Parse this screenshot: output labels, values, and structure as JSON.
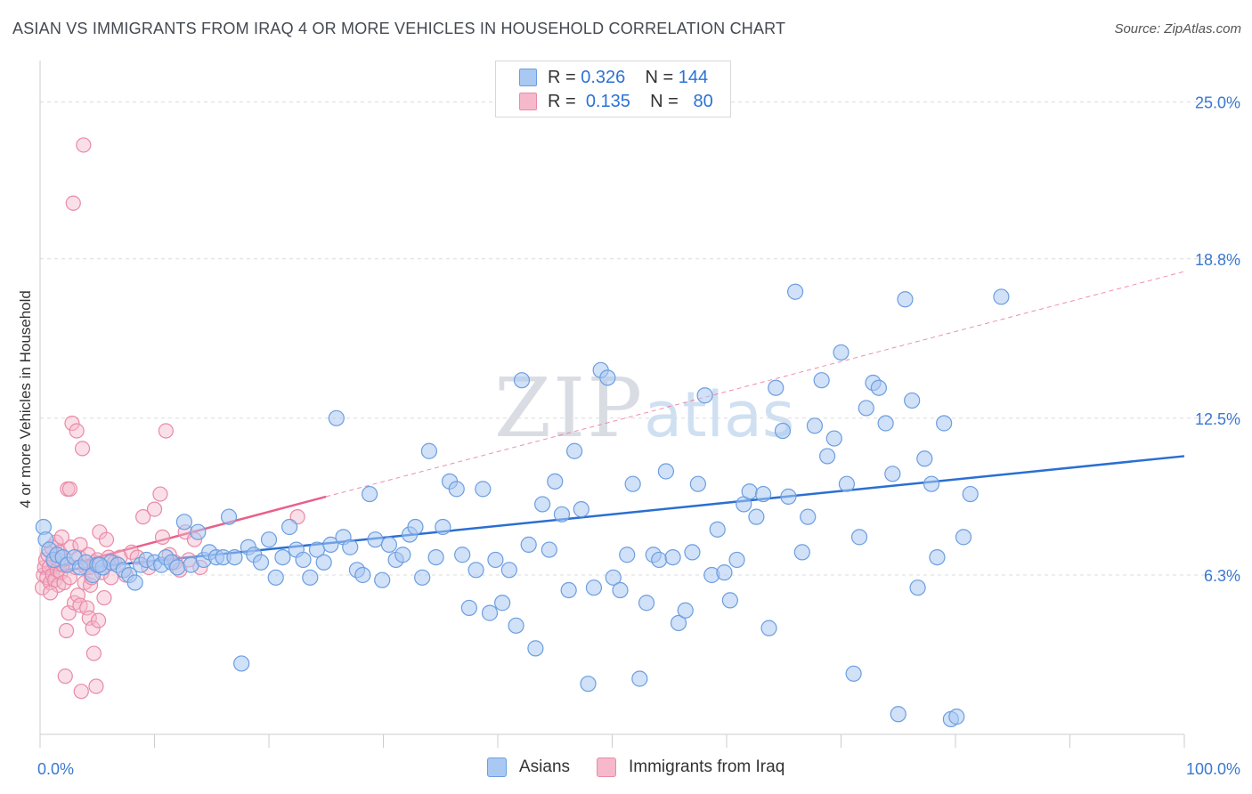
{
  "header": {
    "title": "ASIAN VS IMMIGRANTS FROM IRAQ 4 OR MORE VEHICLES IN HOUSEHOLD CORRELATION CHART",
    "source": "Source: ZipAtlas.com"
  },
  "watermark": {
    "zip": "ZIP",
    "atlas": "atlas"
  },
  "legend": {
    "rows": [
      {
        "r_label": "R =",
        "r_value": "0.326",
        "n_label": "N =",
        "n_value": "144"
      },
      {
        "r_label": "R =",
        "r_value": "0.135",
        "n_label": "N =",
        "n_value": "80"
      }
    ]
  },
  "bottom_legend": {
    "asians": "Asians",
    "iraq": "Immigrants from Iraq"
  },
  "colors": {
    "asian_fill": "#a9c8f2",
    "asian_stroke": "#6c9ee0",
    "asian_line": "#2a6fd2",
    "iraq_fill": "#f5b9cb",
    "iraq_stroke": "#e98aa7",
    "iraq_line": "#e8608a",
    "axis_text": "#3a78d0",
    "grid": "#dcdcdc"
  },
  "chart_data": {
    "type": "scatter",
    "title": "ASIAN VS IMMIGRANTS FROM IRAQ 4 OR MORE VEHICLES IN HOUSEHOLD CORRELATION CHART",
    "xlabel": "",
    "ylabel": "4 or more Vehicles in Household",
    "xlim": [
      0,
      100
    ],
    "ylim": [
      0,
      26.5
    ],
    "x_tick_labels": [
      "0.0%",
      "100.0%"
    ],
    "y_ticks": [
      6.3,
      12.5,
      18.8,
      25.0
    ],
    "y_tick_labels": [
      "6.3%",
      "12.5%",
      "18.8%",
      "25.0%"
    ],
    "grid": true,
    "legend_position": "top-center",
    "series": [
      {
        "name": "Asians",
        "r": 0.326,
        "n": 144,
        "trend": {
          "x": [
            0,
            100
          ],
          "y": [
            6.4,
            11.0
          ],
          "style": "solid"
        },
        "points": [
          [
            0.3,
            8.2
          ],
          [
            0.5,
            7.7
          ],
          [
            0.8,
            7.3
          ],
          [
            1.2,
            6.9
          ],
          [
            1.5,
            7.1
          ],
          [
            2.0,
            7.0
          ],
          [
            2.4,
            6.7
          ],
          [
            3.0,
            7.0
          ],
          [
            3.5,
            6.6
          ],
          [
            4.0,
            6.8
          ],
          [
            4.6,
            6.3
          ],
          [
            5.0,
            6.7
          ],
          [
            5.5,
            6.6
          ],
          [
            6.2,
            6.8
          ],
          [
            6.8,
            6.7
          ],
          [
            7.3,
            6.5
          ],
          [
            7.8,
            6.3
          ],
          [
            8.3,
            6.0
          ],
          [
            8.8,
            6.7
          ],
          [
            9.3,
            6.9
          ],
          [
            10.0,
            6.8
          ],
          [
            10.6,
            6.7
          ],
          [
            11.0,
            7.0
          ],
          [
            11.5,
            6.8
          ],
          [
            12.0,
            6.6
          ],
          [
            12.6,
            8.4
          ],
          [
            13.2,
            6.7
          ],
          [
            13.8,
            8.0
          ],
          [
            14.3,
            6.9
          ],
          [
            14.8,
            7.2
          ],
          [
            15.4,
            7.0
          ],
          [
            16.0,
            7.0
          ],
          [
            16.5,
            8.6
          ],
          [
            17.0,
            7.0
          ],
          [
            17.6,
            2.8
          ],
          [
            18.2,
            7.4
          ],
          [
            18.7,
            7.1
          ],
          [
            19.3,
            6.8
          ],
          [
            20.0,
            7.7
          ],
          [
            20.6,
            6.2
          ],
          [
            21.2,
            7.0
          ],
          [
            21.8,
            8.2
          ],
          [
            22.4,
            7.3
          ],
          [
            23.0,
            6.9
          ],
          [
            23.6,
            6.2
          ],
          [
            24.2,
            7.3
          ],
          [
            24.8,
            6.8
          ],
          [
            25.4,
            7.5
          ],
          [
            25.9,
            12.5
          ],
          [
            26.5,
            7.8
          ],
          [
            27.1,
            7.4
          ],
          [
            27.7,
            6.5
          ],
          [
            28.2,
            6.3
          ],
          [
            28.8,
            9.5
          ],
          [
            29.3,
            7.7
          ],
          [
            29.9,
            6.1
          ],
          [
            30.5,
            7.5
          ],
          [
            31.1,
            6.9
          ],
          [
            31.7,
            7.1
          ],
          [
            32.3,
            7.9
          ],
          [
            32.8,
            8.2
          ],
          [
            33.4,
            6.2
          ],
          [
            34.0,
            11.2
          ],
          [
            34.6,
            7.0
          ],
          [
            35.2,
            8.2
          ],
          [
            35.8,
            10.0
          ],
          [
            36.4,
            9.7
          ],
          [
            36.9,
            7.1
          ],
          [
            37.5,
            5.0
          ],
          [
            38.1,
            6.5
          ],
          [
            38.7,
            9.7
          ],
          [
            39.3,
            4.8
          ],
          [
            39.8,
            6.9
          ],
          [
            40.4,
            5.2
          ],
          [
            41.0,
            6.5
          ],
          [
            41.6,
            4.3
          ],
          [
            42.1,
            14.0
          ],
          [
            42.7,
            7.5
          ],
          [
            43.3,
            3.4
          ],
          [
            43.9,
            9.1
          ],
          [
            44.5,
            7.3
          ],
          [
            45.0,
            10.0
          ],
          [
            45.6,
            8.7
          ],
          [
            46.2,
            5.7
          ],
          [
            46.7,
            11.2
          ],
          [
            47.3,
            8.9
          ],
          [
            47.9,
            2.0
          ],
          [
            48.4,
            5.8
          ],
          [
            49.0,
            14.4
          ],
          [
            49.6,
            14.1
          ],
          [
            50.1,
            6.2
          ],
          [
            50.7,
            5.7
          ],
          [
            51.3,
            7.1
          ],
          [
            51.8,
            9.9
          ],
          [
            52.4,
            2.2
          ],
          [
            53.0,
            5.2
          ],
          [
            53.6,
            7.1
          ],
          [
            54.1,
            6.9
          ],
          [
            54.7,
            10.4
          ],
          [
            55.3,
            7.0
          ],
          [
            55.8,
            4.4
          ],
          [
            56.4,
            4.9
          ],
          [
            57.0,
            7.2
          ],
          [
            57.5,
            9.9
          ],
          [
            58.1,
            13.4
          ],
          [
            58.7,
            6.3
          ],
          [
            59.2,
            8.1
          ],
          [
            59.8,
            6.4
          ],
          [
            60.3,
            5.3
          ],
          [
            60.9,
            6.9
          ],
          [
            61.5,
            9.1
          ],
          [
            62.0,
            9.6
          ],
          [
            62.6,
            8.6
          ],
          [
            63.2,
            9.5
          ],
          [
            63.7,
            4.2
          ],
          [
            64.3,
            13.7
          ],
          [
            64.9,
            12.0
          ],
          [
            65.4,
            9.4
          ],
          [
            66.0,
            17.5
          ],
          [
            66.6,
            7.2
          ],
          [
            67.1,
            8.6
          ],
          [
            67.7,
            12.2
          ],
          [
            68.3,
            14.0
          ],
          [
            68.8,
            11.0
          ],
          [
            69.4,
            11.7
          ],
          [
            70.0,
            15.1
          ],
          [
            70.5,
            9.9
          ],
          [
            71.1,
            2.4
          ],
          [
            71.6,
            7.8
          ],
          [
            72.2,
            12.9
          ],
          [
            72.8,
            13.9
          ],
          [
            73.3,
            13.7
          ],
          [
            73.9,
            12.3
          ],
          [
            74.5,
            10.3
          ],
          [
            75.0,
            0.8
          ],
          [
            75.6,
            17.2
          ],
          [
            76.2,
            13.2
          ],
          [
            76.7,
            5.8
          ],
          [
            77.3,
            10.9
          ],
          [
            77.9,
            9.9
          ],
          [
            78.4,
            7.0
          ],
          [
            79.0,
            12.3
          ],
          [
            79.6,
            0.6
          ],
          [
            80.1,
            0.7
          ],
          [
            80.7,
            7.8
          ],
          [
            81.3,
            9.5
          ],
          [
            84.0,
            17.3
          ],
          [
            5.2,
            6.7
          ]
        ]
      },
      {
        "name": "Immigrants from Iraq",
        "r": 0.135,
        "n": 80,
        "trend": {
          "x": [
            0,
            25
          ],
          "y": [
            6.4,
            9.4
          ],
          "style": "solid",
          "extended": {
            "x": [
              25,
              100
            ],
            "y": [
              9.4,
              18.3
            ],
            "style": "dashed"
          }
        },
        "points": [
          [
            0.2,
            5.8
          ],
          [
            0.3,
            6.3
          ],
          [
            0.4,
            6.6
          ],
          [
            0.5,
            6.9
          ],
          [
            0.6,
            6.2
          ],
          [
            0.7,
            7.1
          ],
          [
            0.8,
            6.6
          ],
          [
            0.9,
            6.0
          ],
          [
            1.0,
            7.4
          ],
          [
            1.1,
            6.3
          ],
          [
            1.2,
            6.8
          ],
          [
            1.3,
            6.1
          ],
          [
            1.4,
            7.6
          ],
          [
            1.5,
            6.5
          ],
          [
            1.6,
            5.9
          ],
          [
            1.7,
            7.2
          ],
          [
            1.8,
            6.4
          ],
          [
            1.9,
            7.8
          ],
          [
            2.0,
            6.7
          ],
          [
            2.1,
            6.0
          ],
          [
            2.2,
            2.3
          ],
          [
            2.3,
            4.1
          ],
          [
            2.4,
            9.7
          ],
          [
            2.5,
            4.8
          ],
          [
            2.6,
            6.2
          ],
          [
            2.7,
            7.4
          ],
          [
            2.8,
            12.3
          ],
          [
            2.9,
            21.0
          ],
          [
            3.0,
            5.2
          ],
          [
            3.1,
            6.6
          ],
          [
            3.2,
            12.0
          ],
          [
            3.3,
            5.5
          ],
          [
            3.4,
            7.0
          ],
          [
            3.5,
            5.1
          ],
          [
            3.6,
            1.7
          ],
          [
            3.7,
            11.3
          ],
          [
            3.8,
            23.3
          ],
          [
            3.9,
            6.0
          ],
          [
            4.0,
            6.6
          ],
          [
            4.1,
            5.0
          ],
          [
            4.2,
            7.1
          ],
          [
            4.3,
            4.6
          ],
          [
            4.4,
            5.9
          ],
          [
            4.5,
            6.2
          ],
          [
            4.6,
            4.2
          ],
          [
            4.7,
            3.2
          ],
          [
            4.8,
            6.8
          ],
          [
            4.9,
            1.9
          ],
          [
            5.0,
            6.9
          ],
          [
            5.1,
            4.5
          ],
          [
            5.2,
            8.0
          ],
          [
            5.4,
            6.4
          ],
          [
            5.6,
            5.4
          ],
          [
            5.8,
            7.7
          ],
          [
            6.0,
            7.0
          ],
          [
            6.2,
            6.2
          ],
          [
            6.5,
            6.8
          ],
          [
            7.0,
            7.0
          ],
          [
            7.5,
            6.3
          ],
          [
            8.0,
            7.2
          ],
          [
            8.5,
            7.0
          ],
          [
            9.0,
            8.6
          ],
          [
            9.5,
            6.6
          ],
          [
            10.0,
            8.9
          ],
          [
            10.5,
            9.5
          ],
          [
            10.7,
            7.8
          ],
          [
            11.0,
            12.0
          ],
          [
            11.3,
            7.1
          ],
          [
            11.8,
            6.8
          ],
          [
            12.2,
            6.5
          ],
          [
            12.7,
            8.0
          ],
          [
            13.0,
            6.9
          ],
          [
            13.5,
            7.7
          ],
          [
            14.0,
            6.6
          ],
          [
            22.5,
            8.6
          ],
          [
            0.9,
            5.6
          ],
          [
            1.6,
            6.9
          ],
          [
            2.6,
            9.7
          ],
          [
            3.5,
            7.5
          ],
          [
            4.3,
            6.6
          ]
        ]
      }
    ]
  }
}
